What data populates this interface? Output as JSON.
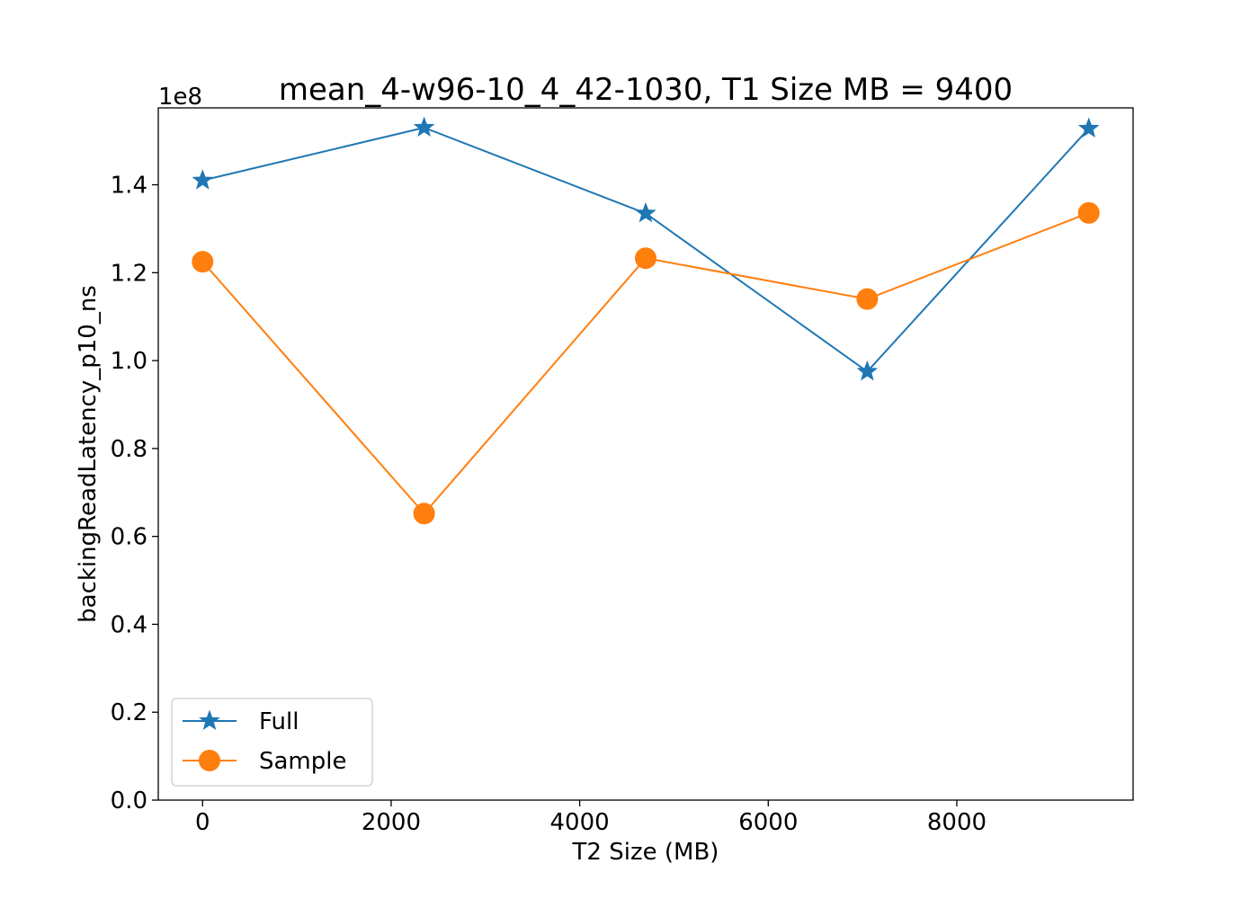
{
  "chart_data": {
    "type": "line",
    "title": "mean_4-w96-10_4_42-1030, T1 Size MB = 9400",
    "xlabel": "T2 Size (MB)",
    "ylabel": "backingReadLatency_p10_ns",
    "y_offset_label": "1e8",
    "xlim": [
      -470,
      9870
    ],
    "ylim": [
      0,
      1.575
    ],
    "xticks": [
      0,
      2000,
      4000,
      6000,
      8000
    ],
    "xtick_labels": [
      "0",
      "2000",
      "4000",
      "6000",
      "8000"
    ],
    "yticks": [
      0.0,
      0.2,
      0.4,
      0.6,
      0.8,
      1.0,
      1.2,
      1.4
    ],
    "ytick_labels": [
      "0.0",
      "0.2",
      "0.4",
      "0.6",
      "0.8",
      "1.0",
      "1.2",
      "1.4"
    ],
    "x": [
      0,
      2350,
      4700,
      7050,
      9400
    ],
    "series": [
      {
        "name": "Full",
        "values": [
          1.41,
          1.53,
          1.335,
          0.975,
          1.528
        ],
        "color": "#1f77b4",
        "marker": "star"
      },
      {
        "name": "Sample",
        "values": [
          1.225,
          0.652,
          1.233,
          1.14,
          1.336
        ],
        "color": "#ff7f0e",
        "marker": "circle"
      }
    ],
    "grid": false,
    "legend_position": "lower-left"
  }
}
